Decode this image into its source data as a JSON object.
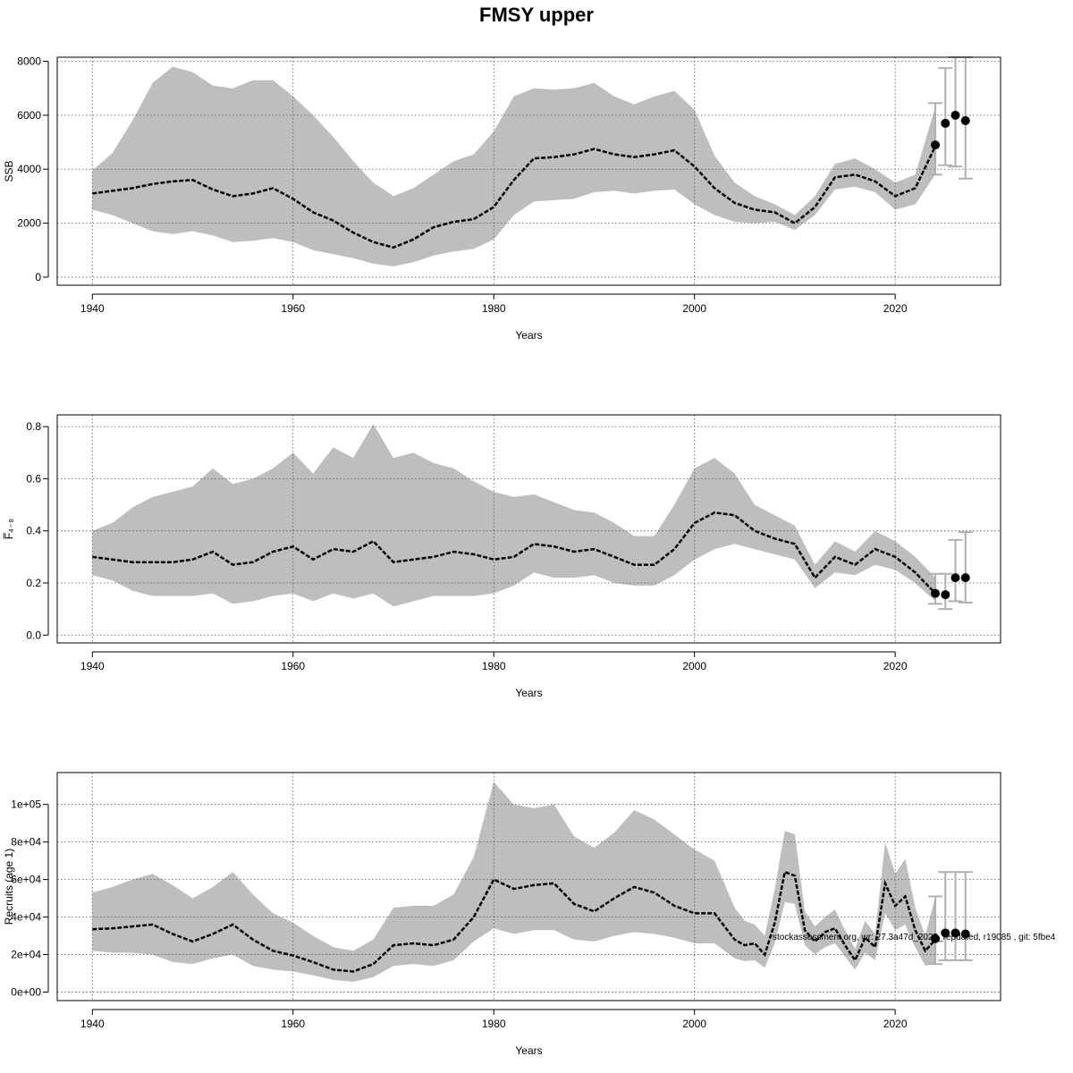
{
  "title": "FMSY upper",
  "footer": "stockassessment.org, wr: 27.3a47d_2025_repdated, r19085 , git: 5fbe4",
  "colors": {
    "band": "#bebebe",
    "line": "#000000",
    "errbar": "#b0b0b0"
  },
  "chart_data": [
    {
      "type": "line",
      "ylabel": "SSB",
      "xlabel": "Years",
      "xlim": [
        1936.5,
        2030.5
      ],
      "ylim": [
        -300,
        8150
      ],
      "xticks": [
        1940,
        1960,
        1980,
        2000,
        2020
      ],
      "yticks": [
        0,
        2000,
        4000,
        6000,
        8000
      ],
      "ytick_labels": [
        "0",
        "2000",
        "4000",
        "6000",
        "8000"
      ],
      "x": [
        1940,
        1942,
        1944,
        1946,
        1948,
        1950,
        1952,
        1954,
        1956,
        1958,
        1960,
        1962,
        1964,
        1966,
        1968,
        1970,
        1972,
        1974,
        1976,
        1978,
        1980,
        1982,
        1984,
        1986,
        1988,
        1990,
        1992,
        1994,
        1996,
        1998,
        2000,
        2002,
        2004,
        2006,
        2008,
        2010,
        2012,
        2014,
        2016,
        2018,
        2020,
        2022,
        2024
      ],
      "mean": [
        3100,
        3200,
        3300,
        3450,
        3550,
        3600,
        3250,
        3000,
        3100,
        3300,
        2900,
        2400,
        2100,
        1650,
        1300,
        1100,
        1400,
        1850,
        2050,
        2150,
        2600,
        3600,
        4400,
        4450,
        4550,
        4750,
        4550,
        4450,
        4550,
        4700,
        4100,
        3300,
        2750,
        2500,
        2400,
        2000,
        2600,
        3700,
        3800,
        3550,
        3000,
        3300,
        4850
      ],
      "lower": [
        2500,
        2300,
        2000,
        1700,
        1600,
        1700,
        1550,
        1300,
        1350,
        1450,
        1300,
        1000,
        850,
        700,
        500,
        400,
        550,
        800,
        950,
        1050,
        1400,
        2300,
        2800,
        2850,
        2900,
        3150,
        3200,
        3100,
        3200,
        3250,
        2700,
        2300,
        2050,
        2000,
        2050,
        1750,
        2300,
        3250,
        3350,
        3150,
        2500,
        2700,
        3800
      ],
      "upper": [
        3950,
        4600,
        5800,
        7200,
        7800,
        7600,
        7100,
        7000,
        7300,
        7300,
        6700,
        6000,
        5200,
        4300,
        3500,
        3000,
        3300,
        3800,
        4300,
        4550,
        5400,
        6700,
        7000,
        6950,
        7000,
        7200,
        6700,
        6400,
        6700,
        6900,
        6200,
        4500,
        3500,
        3000,
        2700,
        2300,
        3000,
        4200,
        4400,
        4000,
        3500,
        3800,
        6300
      ],
      "projection": {
        "x": [
          2024,
          2025,
          2026,
          2027
        ],
        "y": [
          4900,
          5700,
          6000,
          5800
        ],
        "low": [
          3800,
          4150,
          4100,
          3650
        ],
        "high": [
          6450,
          7750,
          8150,
          8150
        ]
      }
    },
    {
      "type": "line",
      "ylabel": "F̅₄₋₈",
      "xlabel": "Years",
      "xlim": [
        1936.5,
        2030.5
      ],
      "ylim": [
        -0.03,
        0.845
      ],
      "xticks": [
        1940,
        1960,
        1980,
        2000,
        2020
      ],
      "yticks": [
        0.0,
        0.2,
        0.4,
        0.6,
        0.8
      ],
      "ytick_labels": [
        "0.0",
        "0.2",
        "0.4",
        "0.6",
        "0.8"
      ],
      "x": [
        1940,
        1942,
        1944,
        1946,
        1948,
        1950,
        1952,
        1954,
        1956,
        1958,
        1960,
        1962,
        1964,
        1966,
        1968,
        1970,
        1972,
        1974,
        1976,
        1978,
        1980,
        1982,
        1984,
        1986,
        1988,
        1990,
        1992,
        1994,
        1996,
        1998,
        2000,
        2002,
        2004,
        2006,
        2008,
        2010,
        2012,
        2014,
        2016,
        2018,
        2020,
        2022,
        2024
      ],
      "mean": [
        0.3,
        0.29,
        0.28,
        0.28,
        0.28,
        0.29,
        0.32,
        0.27,
        0.28,
        0.32,
        0.34,
        0.29,
        0.33,
        0.32,
        0.36,
        0.28,
        0.29,
        0.3,
        0.32,
        0.31,
        0.29,
        0.3,
        0.35,
        0.34,
        0.32,
        0.33,
        0.3,
        0.27,
        0.27,
        0.33,
        0.43,
        0.47,
        0.46,
        0.4,
        0.37,
        0.35,
        0.22,
        0.3,
        0.27,
        0.33,
        0.3,
        0.24,
        0.16
      ],
      "lower": [
        0.23,
        0.21,
        0.17,
        0.15,
        0.15,
        0.15,
        0.16,
        0.12,
        0.13,
        0.15,
        0.16,
        0.13,
        0.16,
        0.14,
        0.16,
        0.11,
        0.13,
        0.15,
        0.15,
        0.15,
        0.16,
        0.19,
        0.24,
        0.22,
        0.22,
        0.23,
        0.2,
        0.19,
        0.19,
        0.23,
        0.29,
        0.33,
        0.35,
        0.33,
        0.31,
        0.29,
        0.18,
        0.24,
        0.23,
        0.27,
        0.25,
        0.2,
        0.13
      ],
      "upper": [
        0.4,
        0.43,
        0.49,
        0.53,
        0.55,
        0.57,
        0.64,
        0.58,
        0.6,
        0.64,
        0.7,
        0.62,
        0.72,
        0.68,
        0.81,
        0.68,
        0.7,
        0.66,
        0.64,
        0.59,
        0.55,
        0.53,
        0.54,
        0.51,
        0.48,
        0.47,
        0.43,
        0.38,
        0.38,
        0.5,
        0.64,
        0.68,
        0.62,
        0.5,
        0.46,
        0.42,
        0.27,
        0.36,
        0.32,
        0.4,
        0.36,
        0.3,
        0.22
      ],
      "projection": {
        "x": [
          2024,
          2025,
          2026,
          2027
        ],
        "y": [
          0.16,
          0.155,
          0.22,
          0.22
        ],
        "low": [
          0.12,
          0.1,
          0.13,
          0.125
        ],
        "high": [
          0.235,
          0.235,
          0.365,
          0.395
        ]
      }
    },
    {
      "type": "line",
      "ylabel": "Recruits (age 1)",
      "xlabel": "Years",
      "xlim": [
        1936.5,
        2030.5
      ],
      "ylim": [
        -4500,
        117000
      ],
      "xticks": [
        1940,
        1960,
        1980,
        2000,
        2020
      ],
      "yticks": [
        0,
        20000,
        40000,
        60000,
        80000,
        100000
      ],
      "ytick_labels": [
        "0e+00",
        "2e+04",
        "4e+04",
        "6e+04",
        "8e+04",
        "1e+05"
      ],
      "x": [
        1940,
        1942,
        1944,
        1946,
        1948,
        1950,
        1952,
        1954,
        1956,
        1958,
        1960,
        1962,
        1964,
        1966,
        1968,
        1970,
        1972,
        1974,
        1976,
        1978,
        1980,
        1982,
        1984,
        1986,
        1988,
        1990,
        1992,
        1994,
        1996,
        1998,
        2000,
        2002,
        2004,
        2005,
        2006,
        2007,
        2008,
        2009,
        2010,
        2011,
        2012,
        2013,
        2014,
        2015,
        2016,
        2017,
        2018,
        2019,
        2020,
        2021,
        2022,
        2023,
        2024
      ],
      "mean": [
        33500,
        34000,
        35000,
        36000,
        31000,
        27000,
        31000,
        36000,
        28000,
        22000,
        19500,
        16000,
        12000,
        11000,
        15000,
        25000,
        26000,
        25000,
        28000,
        40000,
        60000,
        55000,
        57000,
        58000,
        47000,
        43000,
        50000,
        56000,
        53000,
        46000,
        42000,
        42000,
        28000,
        25000,
        26000,
        20000,
        37000,
        64000,
        62000,
        33000,
        27000,
        32000,
        34000,
        25000,
        17000,
        29000,
        24000,
        58000,
        46000,
        51000,
        33000,
        22000,
        28000
      ],
      "lower": [
        22000,
        21000,
        21000,
        20000,
        16000,
        15000,
        18000,
        20000,
        14000,
        12000,
        11000,
        9000,
        6500,
        5500,
        8000,
        14000,
        15000,
        14000,
        17000,
        27000,
        34000,
        31000,
        33000,
        33000,
        28000,
        27000,
        30000,
        32000,
        31000,
        29000,
        26000,
        26000,
        18000,
        16500,
        17000,
        13000,
        26000,
        48000,
        47000,
        25000,
        20000,
        24000,
        26000,
        19000,
        12000,
        21000,
        17000,
        42000,
        33000,
        36000,
        24000,
        14000,
        15500
      ],
      "upper": [
        53000,
        56000,
        60000,
        63000,
        57000,
        50000,
        56000,
        64000,
        52000,
        42000,
        37000,
        30000,
        24000,
        22000,
        28000,
        45000,
        46000,
        46000,
        52000,
        72000,
        112000,
        100000,
        98000,
        100000,
        83000,
        77000,
        85000,
        97000,
        92000,
        84000,
        76000,
        70000,
        45000,
        38000,
        36000,
        30000,
        55000,
        86000,
        84000,
        43000,
        35000,
        40000,
        44000,
        33000,
        23000,
        38000,
        31000,
        80000,
        63000,
        71000,
        45000,
        30000,
        51000
      ],
      "projection": {
        "x": [
          2024,
          2025,
          2026,
          2027
        ],
        "y": [
          28500,
          31500,
          31500,
          31000
        ],
        "low": [
          15000,
          17000,
          17000,
          17000
        ],
        "high": [
          51000,
          64000,
          64000,
          64000
        ]
      }
    }
  ]
}
